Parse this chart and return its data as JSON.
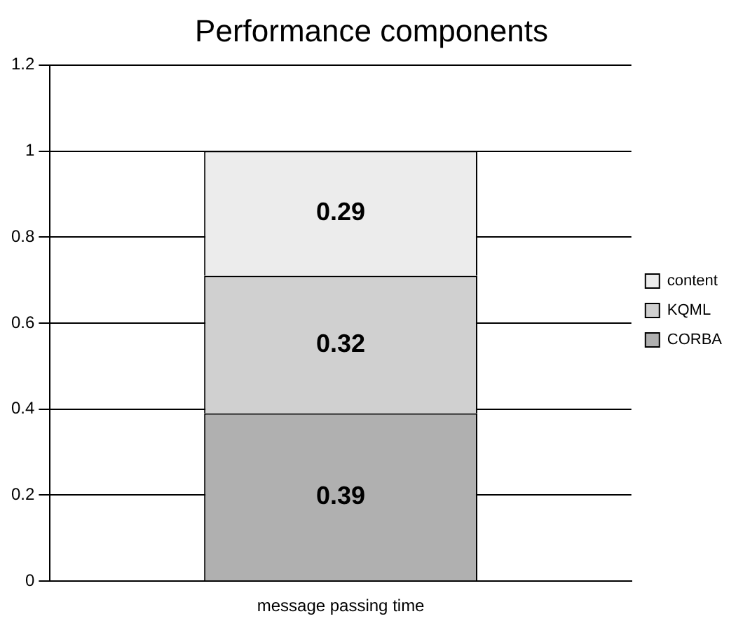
{
  "chart_data": {
    "type": "bar",
    "title": "Performance components",
    "categories": [
      "message passing time"
    ],
    "stacked": true,
    "series": [
      {
        "name": "CORBA",
        "color": "#b0b0b0",
        "values": [
          0.39
        ]
      },
      {
        "name": "KQML",
        "color": "#d0d0d0",
        "values": [
          0.32
        ]
      },
      {
        "name": "content",
        "color": "#ececec",
        "values": [
          0.29
        ]
      }
    ],
    "ylim": [
      0,
      1.2
    ],
    "yticks": [
      0,
      0.2,
      0.4,
      0.6,
      0.8,
      1,
      1.2
    ],
    "grid": "y",
    "legend": "right",
    "data_labels": true
  }
}
